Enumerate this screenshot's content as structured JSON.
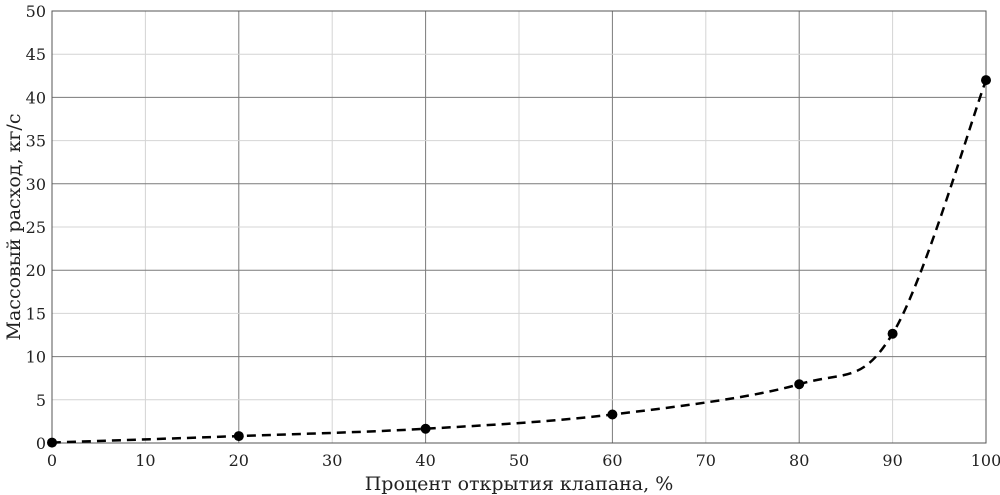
{
  "chart_data": {
    "type": "line",
    "title": "",
    "xlabel": "Процент открытия клапана, %",
    "ylabel": "Массовый расход, кг/с",
    "xlim": [
      0,
      100
    ],
    "ylim": [
      0,
      50
    ],
    "xticks": [
      0,
      10,
      20,
      30,
      40,
      50,
      60,
      70,
      80,
      90,
      100
    ],
    "yticks": [
      0,
      5,
      10,
      15,
      20,
      25,
      30,
      35,
      40,
      45,
      50
    ],
    "grid": true,
    "legend": "none",
    "series": [
      {
        "line_style": "dashed",
        "marker": "circle",
        "color": "#000000",
        "x": [
          0,
          20,
          40,
          60,
          80,
          90,
          100
        ],
        "y": [
          0.05,
          0.8,
          1.65,
          3.3,
          6.8,
          12.65,
          42.0
        ]
      }
    ]
  }
}
